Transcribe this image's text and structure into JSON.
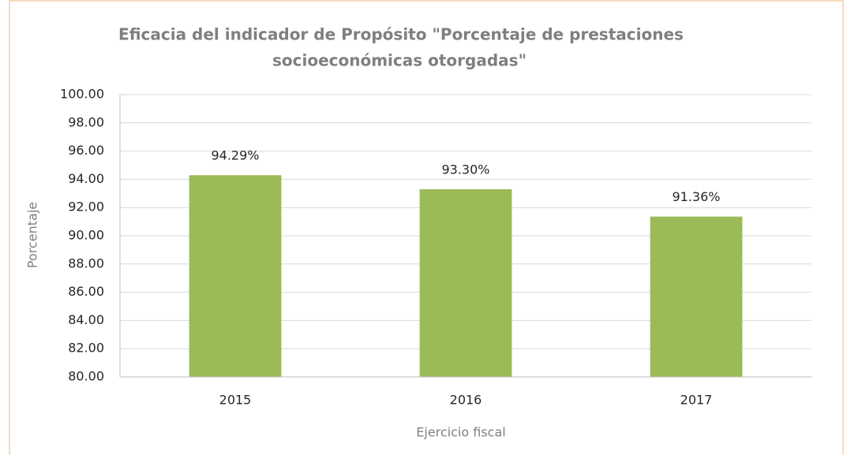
{
  "chart_data": {
    "type": "bar",
    "title": [
      "Eficacia del indicador de Propósito \"Porcentaje de prestaciones",
      "socioeconómicas otorgadas\""
    ],
    "x_label": "Ejercicio fiscal",
    "y_label": "Porcentaje",
    "categories": [
      "2015",
      "2016",
      "2017"
    ],
    "values": [
      94.29,
      93.3,
      91.36
    ],
    "value_labels": [
      "94.29%",
      "93.30%",
      "91.36%"
    ],
    "color": "#9bbb59",
    "ylim": [
      80,
      100
    ],
    "yticks": [
      {
        "value": 80,
        "label": "80.00"
      },
      {
        "value": 82,
        "label": "82.00"
      },
      {
        "value": 84,
        "label": "84.00"
      },
      {
        "value": 86,
        "label": "86.00"
      },
      {
        "value": 88,
        "label": "88.00"
      },
      {
        "value": 90,
        "label": "90.00"
      },
      {
        "value": 92,
        "label": "92.00"
      },
      {
        "value": 94,
        "label": "94.00"
      },
      {
        "value": 96,
        "label": "96.00"
      },
      {
        "value": 98,
        "label": "98.00"
      },
      {
        "value": 100,
        "label": "100.00"
      }
    ],
    "grid": true
  }
}
